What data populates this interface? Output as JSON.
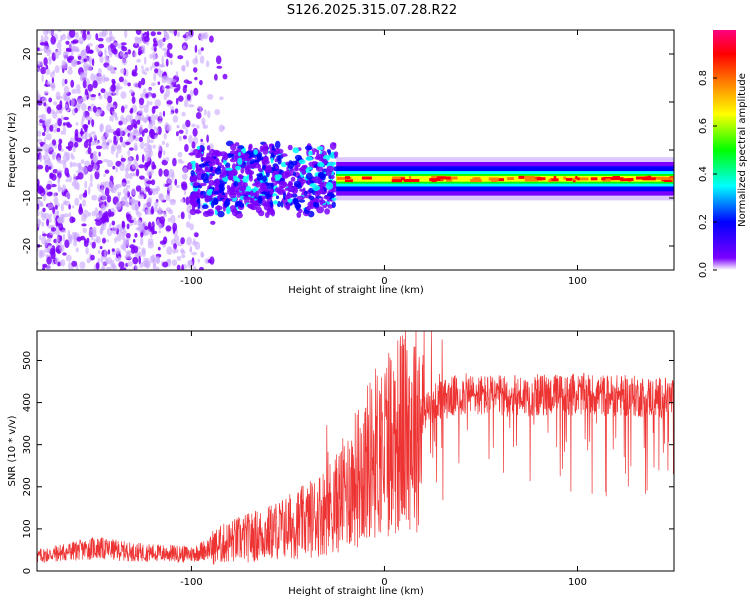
{
  "title": "S126.2025.315.07.28.R22",
  "chart_data": [
    {
      "type": "heatmap",
      "name": "spectrogram",
      "xlabel": "Height of straight line (km)",
      "ylabel": "Frequency (Hz)",
      "xlim": [
        -180,
        150
      ],
      "ylim": [
        -25,
        25
      ],
      "x_ticks": [
        -100,
        0,
        100
      ],
      "y_ticks": [
        20,
        10,
        0,
        -10,
        -20
      ],
      "colorbar": {
        "label": "Normalized spectral amplitude",
        "range": [
          0,
          1
        ],
        "ticks": [
          0.0,
          0.2,
          0.4,
          0.6,
          0.8
        ],
        "colors": [
          "#ffffff",
          "#7b00ff",
          "#0000ff",
          "#00ffff",
          "#00ff00",
          "#ffff00",
          "#ff8000",
          "#ff0000",
          "#ff0080"
        ]
      },
      "features": [
        {
          "region": "noise",
          "x_range": [
            -180,
            -80
          ],
          "freq_range": [
            -25,
            25
          ],
          "amplitude": 0.1
        },
        {
          "region": "emerging",
          "x_range": [
            -100,
            -25
          ],
          "freq_center": -6,
          "amplitude": 0.3
        },
        {
          "region": "signal",
          "x_range": [
            -25,
            150
          ],
          "freq_center": -6,
          "amplitude": 0.9
        }
      ]
    },
    {
      "type": "line",
      "name": "snr",
      "xlabel": "Height of straight line (km)",
      "ylabel": "SNR (10 * v/v)",
      "xlim": [
        -180,
        150
      ],
      "ylim": [
        0,
        570
      ],
      "x_ticks": [
        -100,
        0,
        100
      ],
      "y_ticks": [
        0,
        100,
        200,
        300,
        400,
        500
      ],
      "color": "#ee3333",
      "envelope": [
        {
          "x": -180,
          "y": 35
        },
        {
          "x": -150,
          "y": 55
        },
        {
          "x": -130,
          "y": 45
        },
        {
          "x": -100,
          "y": 40
        },
        {
          "x": -80,
          "y": 70
        },
        {
          "x": -60,
          "y": 90
        },
        {
          "x": -40,
          "y": 120
        },
        {
          "x": -25,
          "y": 160
        },
        {
          "x": -15,
          "y": 220
        },
        {
          "x": -5,
          "y": 280
        },
        {
          "x": 5,
          "y": 320
        },
        {
          "x": 15,
          "y": 350
        },
        {
          "x": 25,
          "y": 400
        },
        {
          "x": 40,
          "y": 420
        },
        {
          "x": 60,
          "y": 415
        },
        {
          "x": 100,
          "y": 420
        },
        {
          "x": 130,
          "y": 415
        },
        {
          "x": 150,
          "y": 410
        }
      ]
    }
  ]
}
